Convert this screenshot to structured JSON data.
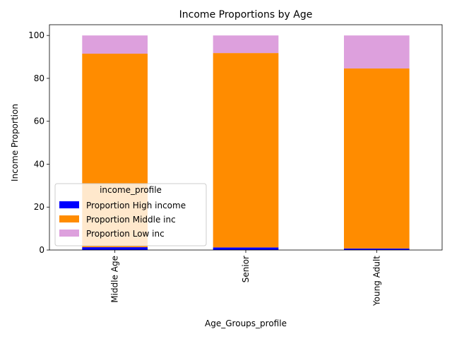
{
  "chart_data": {
    "type": "bar",
    "stacked": true,
    "title": "Income Proportions by Age",
    "xlabel": "Age_Groups_profile",
    "ylabel": "Income Proportion",
    "categories": [
      "Middle Age",
      "Senior",
      "Young Adult"
    ],
    "ylim": [
      0,
      105
    ],
    "yticks": [
      0,
      20,
      40,
      60,
      80,
      100
    ],
    "grid": false,
    "legend": {
      "title": "income_profile",
      "position": "lower-left"
    },
    "series": [
      {
        "name": "Proportion High income",
        "color": "#0000ff",
        "values": [
          1.3,
          1.2,
          0.7
        ]
      },
      {
        "name": "Proportion Middle inc",
        "color": "#ff8c00",
        "values": [
          90.2,
          90.6,
          83.9
        ]
      },
      {
        "name": "Proportion Low inc",
        "color": "#dda0dd",
        "values": [
          8.5,
          8.2,
          15.4
        ]
      }
    ]
  }
}
